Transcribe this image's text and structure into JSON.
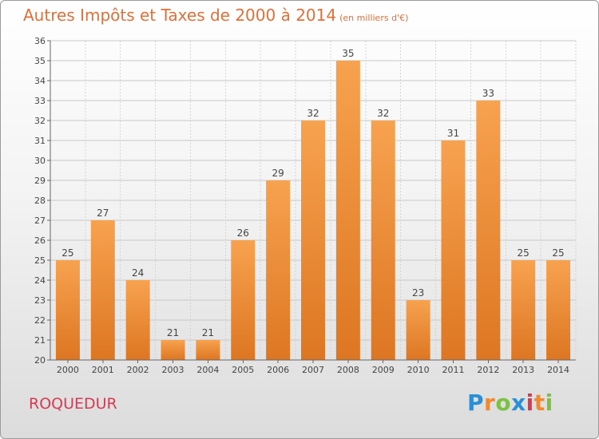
{
  "title": {
    "main": "Autres Impôts et Taxes de 2000 à 2014",
    "sub": "(en milliers d'€)"
  },
  "place": "ROQUEDUR",
  "logo": {
    "text": "Proxiti",
    "letters": [
      {
        "ch": "P",
        "color": "#2a8fd6"
      },
      {
        "ch": "r",
        "color": "#f0892f"
      },
      {
        "ch": "o",
        "color": "#7cc242"
      },
      {
        "ch": "x",
        "color": "#2a8fd6"
      },
      {
        "ch": "i",
        "color": "#d83a52"
      },
      {
        "ch": "t",
        "color": "#f0892f"
      },
      {
        "ch": "i",
        "color": "#7cc242"
      }
    ]
  },
  "chart_data": {
    "type": "bar",
    "categories": [
      "2000",
      "2001",
      "2002",
      "2003",
      "2004",
      "2005",
      "2006",
      "2007",
      "2008",
      "2009",
      "2010",
      "2011",
      "2012",
      "2013",
      "2014"
    ],
    "values": [
      25,
      27,
      24,
      21,
      21,
      26,
      29,
      32,
      35,
      32,
      23,
      31,
      33,
      25,
      25
    ],
    "ylim": [
      20,
      36
    ],
    "yticks": [
      20,
      21,
      22,
      23,
      24,
      25,
      26,
      27,
      28,
      29,
      30,
      31,
      32,
      33,
      34,
      35,
      36
    ],
    "grid": true,
    "bar_color_top": "#f7a24f",
    "bar_color_bottom": "#dd7622",
    "text_color": "#e0703a"
  }
}
